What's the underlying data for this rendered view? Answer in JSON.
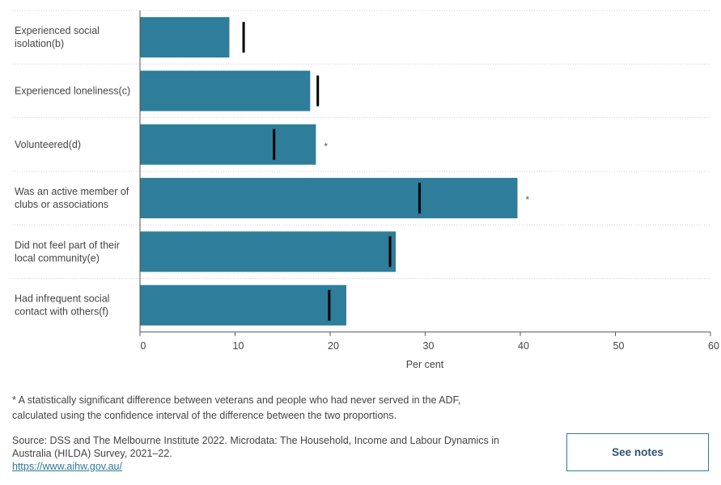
{
  "chart_data": {
    "type": "bar",
    "orientation": "horizontal",
    "categories": [
      [
        "Experienced social",
        "isolation(b)"
      ],
      [
        "Experienced loneliness(c)"
      ],
      [
        "Volunteered(d)"
      ],
      [
        "Was an active member of",
        "clubs or associations"
      ],
      [
        "Did not feel part of their",
        "local community(e)"
      ],
      [
        "Had infrequent social",
        "contact with others(f)"
      ]
    ],
    "values": [
      9.4,
      17.9,
      18.5,
      39.7,
      26.9,
      21.7
    ],
    "reference_markers": [
      10.9,
      18.7,
      14.1,
      29.4,
      26.3,
      19.9
    ],
    "significant": [
      false,
      false,
      true,
      true,
      false,
      false
    ],
    "significance_symbol": "*",
    "xlim": [
      0,
      60
    ],
    "xticks": [
      0,
      10,
      20,
      30,
      40,
      50,
      60
    ],
    "xlabel": "Per cent",
    "grid": "horizontal-dotted",
    "bar_color": "#2e7d9a",
    "marker_color": "#000000"
  },
  "footnote": {
    "line1": "* A statistically significant difference between veterans and people who had never served in the ADF,",
    "line2": "calculated using the confidence interval of the difference between the two proportions."
  },
  "source": {
    "line1": "Source: DSS and The Melbourne Institute 2022. Microdata: The Household, Income and Labour Dynamics in",
    "line2": "Australia (HILDA) Survey, 2021–22.",
    "link": "https://www.aihw.gov.au/"
  },
  "buttons": {
    "see_notes": "See notes"
  }
}
